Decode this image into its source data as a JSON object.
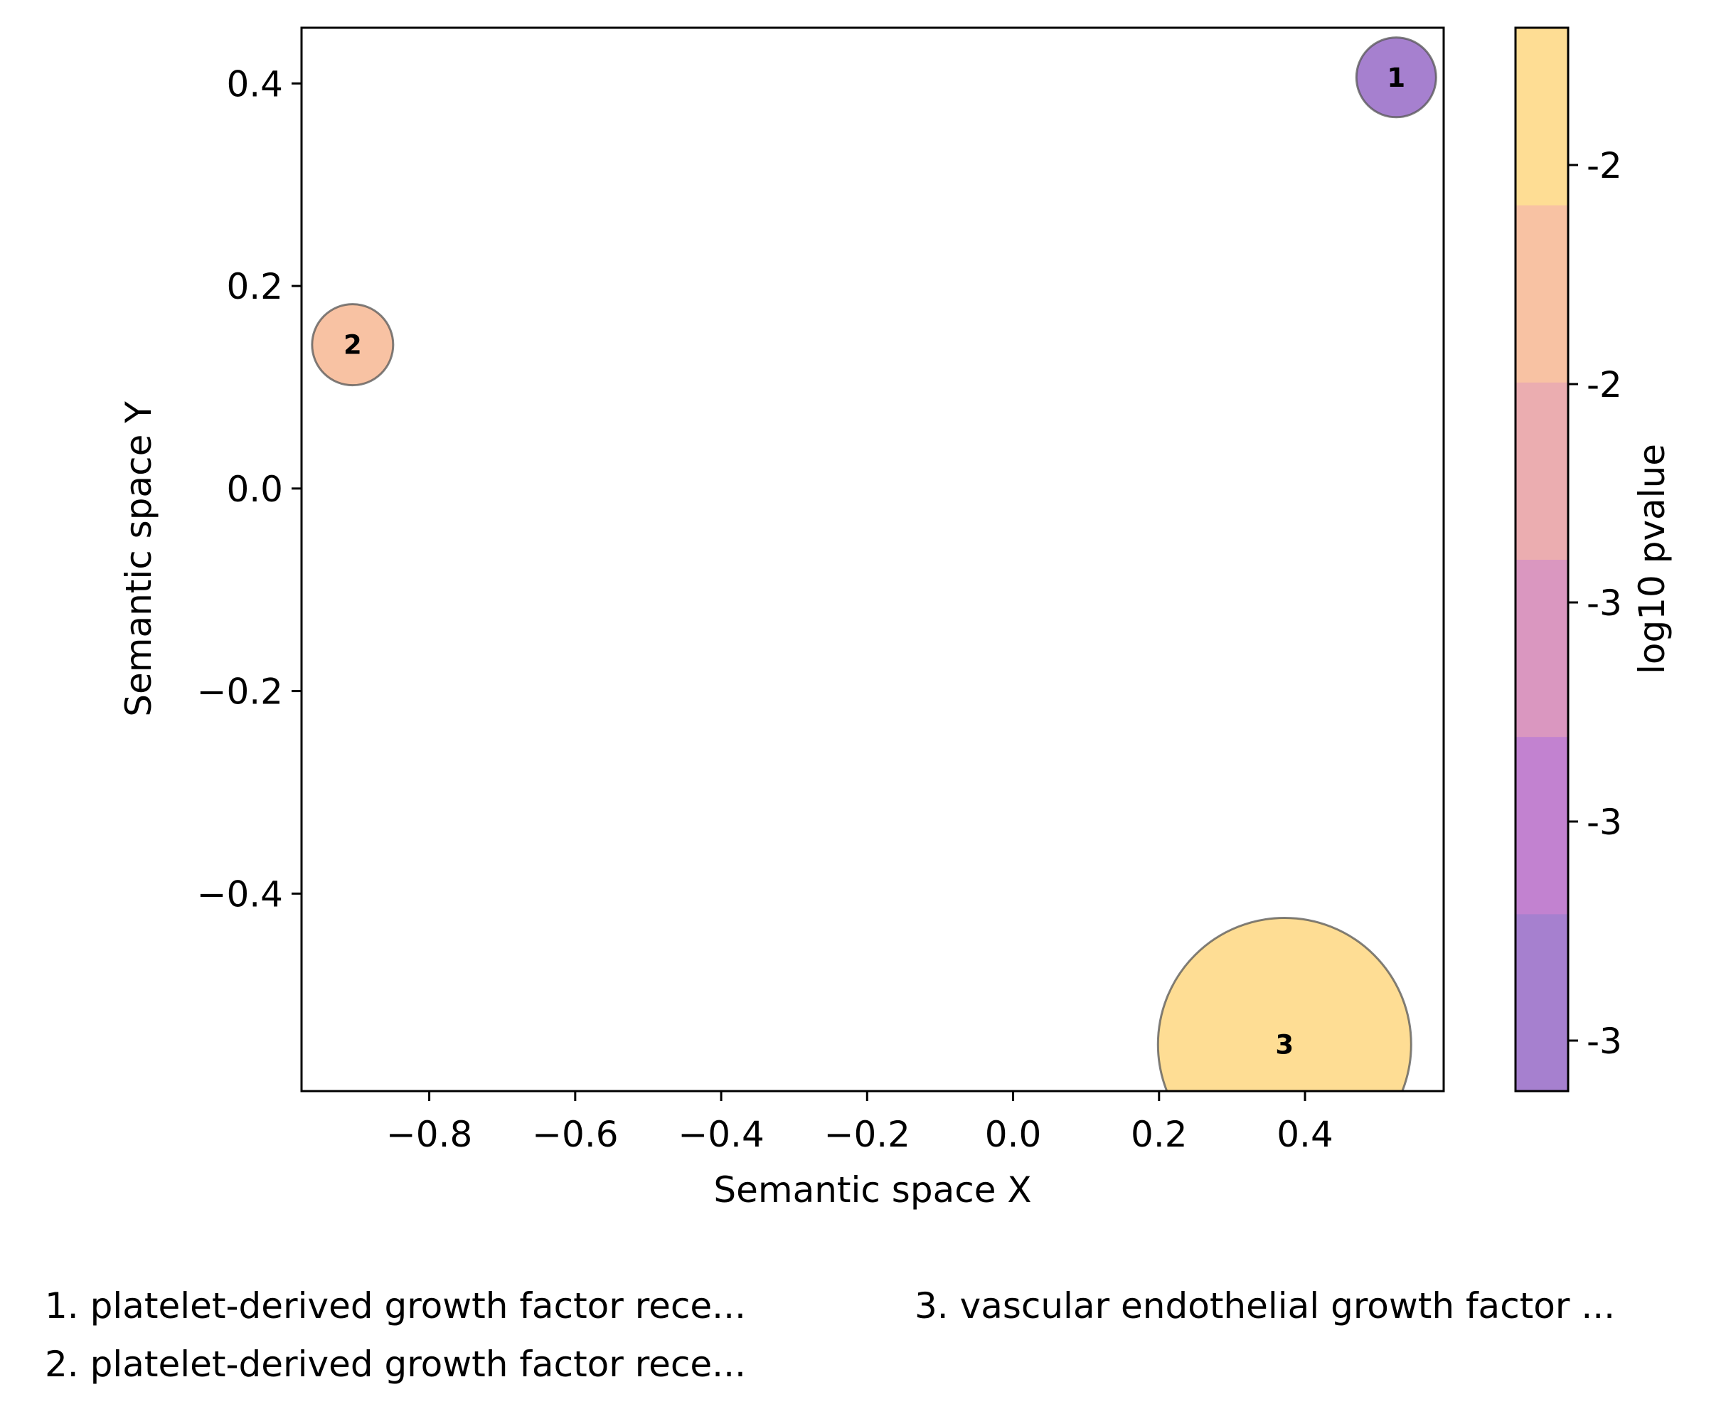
{
  "chart_data": {
    "type": "scatter",
    "xlabel": "Semantic space X",
    "ylabel": "Semantic space Y",
    "xlim": [
      -0.975,
      0.59
    ],
    "ylim": [
      -0.595,
      0.455
    ],
    "xticks": [
      -0.8,
      -0.6,
      -0.4,
      -0.2,
      0.0,
      0.2,
      0.4
    ],
    "xtick_labels": [
      "−0.8",
      "−0.6",
      "−0.4",
      "−0.2",
      "0.0",
      "0.2",
      "0.4"
    ],
    "yticks": [
      0.4,
      0.2,
      0.0,
      -0.2,
      -0.4
    ],
    "ytick_labels": [
      "0.4",
      "0.2",
      "0.0",
      "−0.2",
      "−0.4"
    ],
    "grid": false,
    "points": [
      {
        "id": "1",
        "x": 0.525,
        "y": 0.406,
        "color": "#a680cf"
      },
      {
        "id": "2",
        "x": -0.905,
        "y": 0.142,
        "color": "#f8c2a3"
      },
      {
        "id": "3",
        "x": 0.372,
        "y": -0.549,
        "color": "#fedd94"
      }
    ],
    "colorbar": {
      "label": "log10 pvalue",
      "bands": [
        "#a680cf",
        "#c282d0",
        "#da97c0",
        "#ebadb0",
        "#f8c2a3",
        "#fedd94"
      ],
      "tick_labels": [
        "-3",
        "-3",
        "-3",
        "-2",
        "-2"
      ]
    },
    "legend": [
      "1. platelet-derived growth factor rece...",
      "2. platelet-derived growth factor rece...",
      "3. vascular endothelial growth factor ..."
    ]
  }
}
